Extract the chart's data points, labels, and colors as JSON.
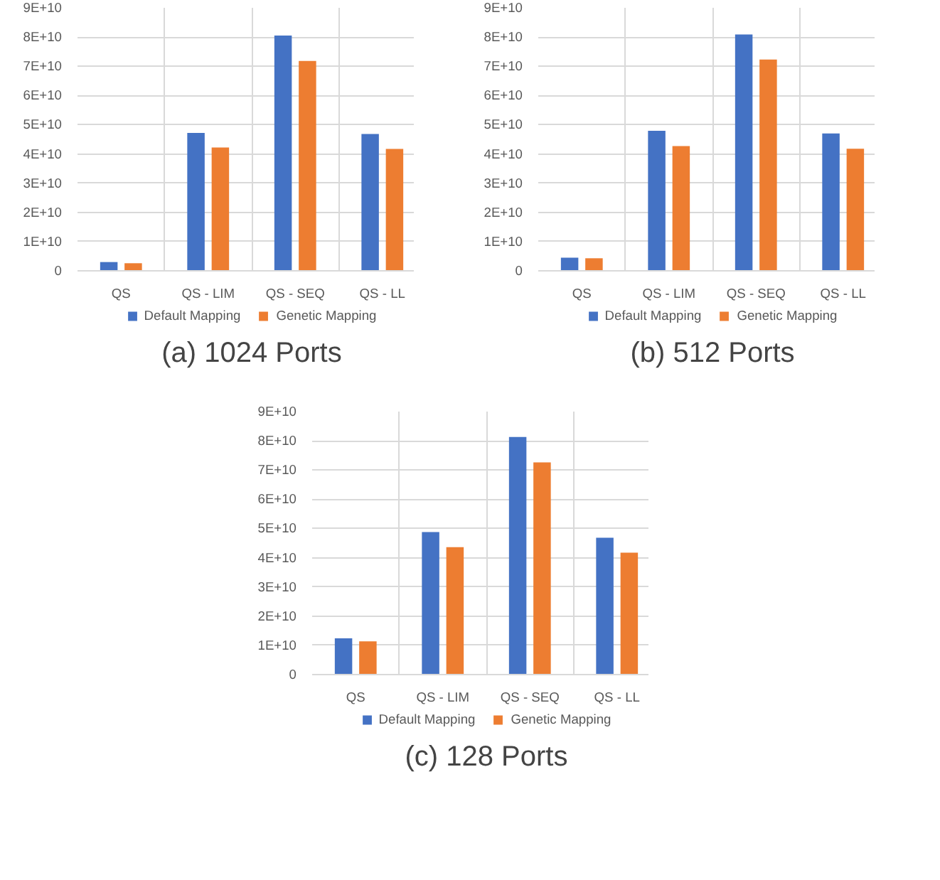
{
  "chart_data": [
    {
      "type": "bar",
      "title": "(a) 1024 Ports",
      "categories": [
        "QS",
        "QS - LIM",
        "QS - SEQ",
        "QS - LL"
      ],
      "series": [
        {
          "name": "Default Mapping",
          "color": "#4472c4",
          "values": [
            3000000000.0,
            47200000000.0,
            80500000000.0,
            46800000000.0
          ]
        },
        {
          "name": "Genetic Mapping",
          "color": "#ed7d31",
          "values": [
            2600000000.0,
            42200000000.0,
            71800000000.0,
            41700000000.0
          ]
        }
      ],
      "ylim": [
        0,
        90000000000.0
      ],
      "yticks": [
        0,
        {
          "value": 10000000000.0,
          "label": "1E+10"
        },
        {
          "value": 20000000000.0,
          "label": "2E+10"
        },
        {
          "value": 30000000000.0,
          "label": "3E+10"
        },
        {
          "value": 40000000000.0,
          "label": "4E+10"
        },
        {
          "value": 50000000000.0,
          "label": "5E+10"
        },
        {
          "value": 60000000000.0,
          "label": "6E+10"
        },
        {
          "value": 70000000000.0,
          "label": "7E+10"
        },
        {
          "value": 80000000000.0,
          "label": "8E+10"
        },
        {
          "value": 90000000000.0,
          "label": "9E+10"
        }
      ],
      "grid": true,
      "legend": "bottom"
    },
    {
      "type": "bar",
      "title": "(b) 512 Ports",
      "categories": [
        "QS",
        "QS - LIM",
        "QS - SEQ",
        "QS - LL"
      ],
      "series": [
        {
          "name": "Default Mapping",
          "color": "#4472c4",
          "values": [
            4500000000.0,
            47900000000.0,
            80900000000.0,
            47000000000.0
          ]
        },
        {
          "name": "Genetic Mapping",
          "color": "#ed7d31",
          "values": [
            4300000000.0,
            42700000000.0,
            72300000000.0,
            41800000000.0
          ]
        }
      ],
      "ylim": [
        0,
        90000000000.0
      ],
      "yticks": [
        0,
        {
          "value": 10000000000.0,
          "label": "1E+10"
        },
        {
          "value": 20000000000.0,
          "label": "2E+10"
        },
        {
          "value": 30000000000.0,
          "label": "3E+10"
        },
        {
          "value": 40000000000.0,
          "label": "4E+10"
        },
        {
          "value": 50000000000.0,
          "label": "5E+10"
        },
        {
          "value": 60000000000.0,
          "label": "6E+10"
        },
        {
          "value": 70000000000.0,
          "label": "7E+10"
        },
        {
          "value": 80000000000.0,
          "label": "8E+10"
        },
        {
          "value": 90000000000.0,
          "label": "9E+10"
        }
      ],
      "grid": true,
      "legend": "bottom"
    },
    {
      "type": "bar",
      "title": "(c) 128 Ports",
      "categories": [
        "QS",
        "QS - LIM",
        "QS - SEQ",
        "QS - LL"
      ],
      "series": [
        {
          "name": "Default Mapping",
          "color": "#4472c4",
          "values": [
            12400000000.0,
            48800000000.0,
            81300000000.0,
            46800000000.0
          ]
        },
        {
          "name": "Genetic Mapping",
          "color": "#ed7d31",
          "values": [
            11400000000.0,
            43600000000.0,
            72600000000.0,
            41700000000.0
          ]
        }
      ],
      "ylim": [
        0,
        90000000000.0
      ],
      "yticks": [
        0,
        {
          "value": 10000000000.0,
          "label": "1E+10"
        },
        {
          "value": 20000000000.0,
          "label": "2E+10"
        },
        {
          "value": 30000000000.0,
          "label": "3E+10"
        },
        {
          "value": 40000000000.0,
          "label": "4E+10"
        },
        {
          "value": 50000000000.0,
          "label": "5E+10"
        },
        {
          "value": 60000000000.0,
          "label": "6E+10"
        },
        {
          "value": 70000000000.0,
          "label": "7E+10"
        },
        {
          "value": 80000000000.0,
          "label": "8E+10"
        },
        {
          "value": 90000000000.0,
          "label": "9E+10"
        }
      ],
      "grid": true,
      "legend": "bottom"
    }
  ]
}
